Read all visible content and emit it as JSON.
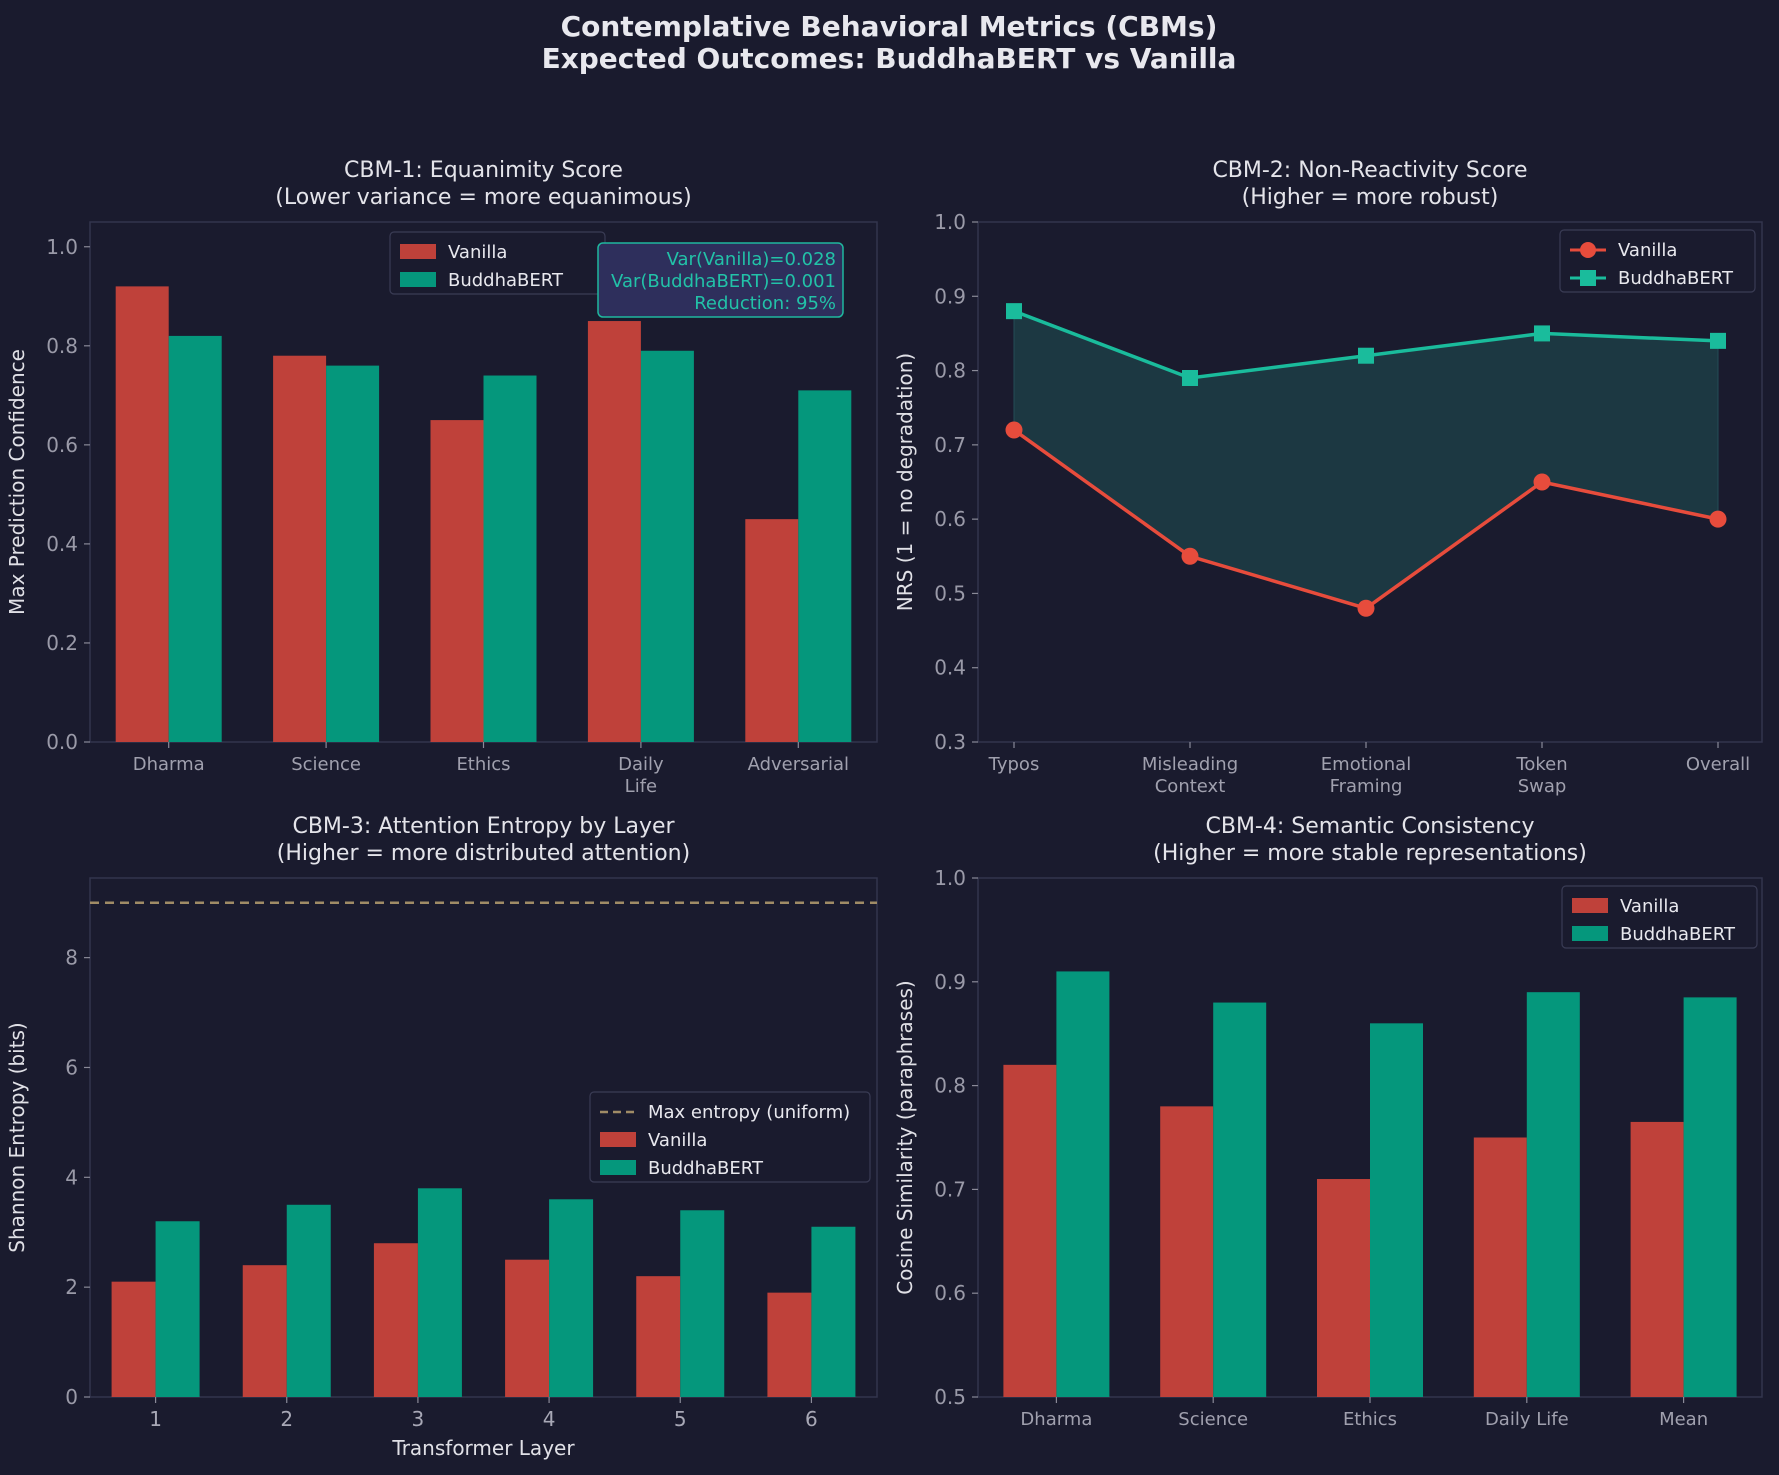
{
  "figure": {
    "title_line1": "Contemplative Behavioral Metrics (CBMs)",
    "title_line2": "Expected Outcomes: BuddhaBERT vs Vanilla"
  },
  "colors": {
    "background": "#1a1b2e",
    "vanilla_bar": "#bf413a",
    "buddha_bar": "#05977c",
    "vanilla_line": "#e74c3c",
    "buddha_line": "#1abc9c",
    "fill_between": "#1d3a44",
    "max_entropy_line": "#a08c66",
    "spine": "#33354d"
  },
  "chart_data": [
    {
      "type": "bar",
      "title_line1": "CBM-1: Equanimity Score",
      "title_line2": "(Lower variance = more equanimous)",
      "xlabel": "",
      "ylabel": "Max Prediction Confidence",
      "categories": [
        "Dharma",
        "Science",
        "Ethics",
        "Daily\nLife",
        "Adversarial"
      ],
      "series": [
        {
          "name": "Vanilla",
          "values": [
            0.92,
            0.78,
            0.65,
            0.85,
            0.45
          ]
        },
        {
          "name": "BuddhaBERT",
          "values": [
            0.82,
            0.76,
            0.74,
            0.79,
            0.71
          ]
        }
      ],
      "ylim": [
        0,
        1.05
      ],
      "yticks": [
        0.0,
        0.2,
        0.4,
        0.6,
        0.8,
        1.0
      ],
      "ytick_labels": [
        "0.0",
        "0.2",
        "0.4",
        "0.6",
        "0.8",
        "1.0"
      ],
      "legend": "upper-center",
      "annotation": [
        "Var(Vanilla)=0.028",
        "Var(BuddhaBERT)=0.001",
        "Reduction: 95%"
      ]
    },
    {
      "type": "line",
      "title_line1": "CBM-2: Non-Reactivity Score",
      "title_line2": "(Higher = more robust)",
      "xlabel": "",
      "ylabel": "NRS (1 = no degradation)",
      "categories": [
        "Typos",
        "Misleading\nContext",
        "Emotional\nFraming",
        "Token\nSwap",
        "Overall"
      ],
      "series": [
        {
          "name": "Vanilla",
          "values": [
            0.72,
            0.55,
            0.48,
            0.65,
            0.6
          ],
          "marker": "circle"
        },
        {
          "name": "BuddhaBERT",
          "values": [
            0.88,
            0.79,
            0.82,
            0.85,
            0.84
          ],
          "marker": "square"
        }
      ],
      "fill_between": true,
      "ylim": [
        0.3,
        1.0
      ],
      "yticks": [
        0.3,
        0.4,
        0.5,
        0.6,
        0.7,
        0.8,
        0.9,
        1.0
      ],
      "ytick_labels": [
        "0.3",
        "0.4",
        "0.5",
        "0.6",
        "0.7",
        "0.8",
        "0.9",
        "1.0"
      ],
      "legend": "top-right"
    },
    {
      "type": "bar",
      "title_line1": "CBM-3: Attention Entropy by Layer",
      "title_line2": "(Higher = more distributed attention)",
      "xlabel": "Transformer Layer",
      "ylabel": "Shannon Entropy (bits)",
      "categories": [
        "1",
        "2",
        "3",
        "4",
        "5",
        "6"
      ],
      "series": [
        {
          "name": "Vanilla",
          "values": [
            2.1,
            2.4,
            2.8,
            2.5,
            2.2,
            1.9
          ]
        },
        {
          "name": "BuddhaBERT",
          "values": [
            3.2,
            3.5,
            3.8,
            3.6,
            3.4,
            3.1
          ]
        }
      ],
      "reference_line": {
        "name": "Max entropy (uniform)",
        "value": 9.0
      },
      "ylim": [
        0,
        9.45
      ],
      "yticks": [
        0,
        2,
        4,
        6,
        8
      ],
      "ytick_labels": [
        "0",
        "2",
        "4",
        "6",
        "8"
      ],
      "legend": "center-right"
    },
    {
      "type": "bar",
      "title_line1": "CBM-4: Semantic Consistency",
      "title_line2": "(Higher = more stable representations)",
      "xlabel": "",
      "ylabel": "Cosine Similarity (paraphrases)",
      "categories": [
        "Dharma",
        "Science",
        "Ethics",
        "Daily Life",
        "Mean"
      ],
      "series": [
        {
          "name": "Vanilla",
          "values": [
            0.82,
            0.78,
            0.71,
            0.75,
            0.765
          ]
        },
        {
          "name": "BuddhaBERT",
          "values": [
            0.91,
            0.88,
            0.86,
            0.89,
            0.885
          ]
        }
      ],
      "ylim": [
        0.5,
        1.0
      ],
      "yticks": [
        0.5,
        0.6,
        0.7,
        0.8,
        0.9,
        1.0
      ],
      "ytick_labels": [
        "0.5",
        "0.6",
        "0.7",
        "0.8",
        "0.9",
        "1.0"
      ],
      "legend": "top-right"
    }
  ]
}
